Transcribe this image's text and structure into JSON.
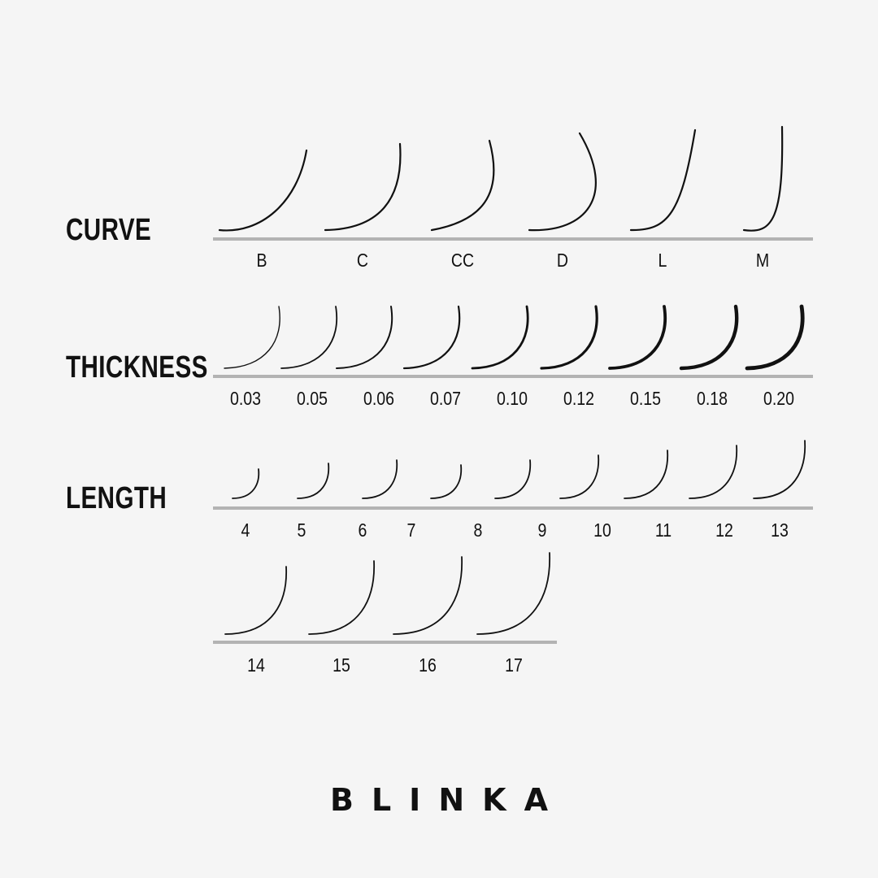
{
  "sections": {
    "curve": {
      "title": "CURVE",
      "labels": [
        "B",
        "C",
        "CC",
        "D",
        "L",
        "M"
      ]
    },
    "thickness": {
      "title": "THICKNESS",
      "labels": [
        "0.03",
        "0.05",
        "0.06",
        "0.07",
        "0.10",
        "0.12",
        "0.15",
        "0.18",
        "0.20"
      ]
    },
    "length": {
      "title": "LENGTH",
      "labels": [
        "4",
        "5",
        "6",
        "7",
        "8",
        "9",
        "10",
        "11",
        "12",
        "13",
        "14",
        "15",
        "16",
        "17"
      ]
    }
  },
  "brand": {
    "logo_text": "BLINKA"
  },
  "colors": {
    "background": "#f5f5f5",
    "baseline": "#b3b3b3",
    "ink": "#111111"
  }
}
